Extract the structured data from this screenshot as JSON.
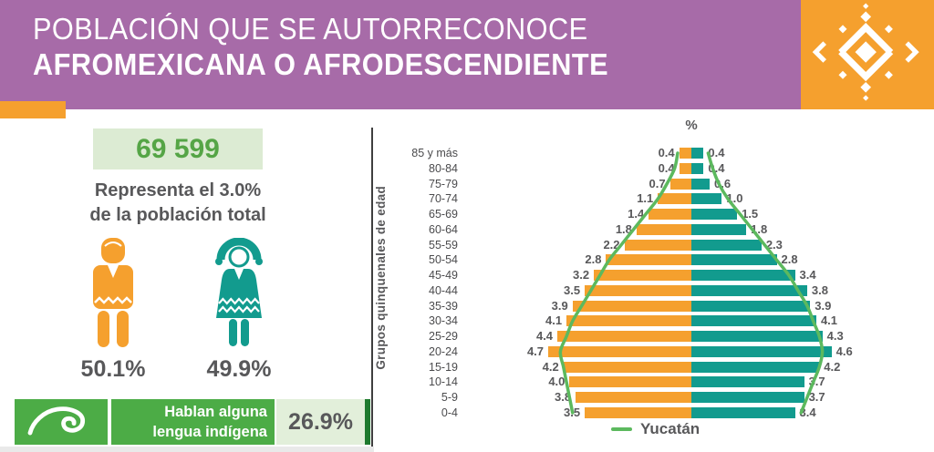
{
  "header": {
    "title_line1": "POBLACIÓN QUE SE AUTORRECONOCE",
    "title_line2": "AFROMEXICANA O AFRODESCENDIENTE"
  },
  "summary": {
    "total": "69 599",
    "description_line1": "Representa el 3.0%",
    "description_line2": "de la población total",
    "male_pct": "50.1%",
    "female_pct": "49.9%"
  },
  "language": {
    "label_line1": "Hablan alguna",
    "label_line2": "lengua indígena",
    "value": "26.9%"
  },
  "colors": {
    "header_purple": "#A76BA8",
    "accent_orange": "#F5A02E",
    "accent_teal": "#129B8E",
    "reference_line_green": "#5CB95E",
    "box_green": "#4CAC46",
    "box_green_dark": "#1E7A2E",
    "light_green_bg": "#DCEBD3",
    "value_green": "#55A546",
    "text_gray": "#58585A"
  },
  "chart_data": {
    "type": "bar",
    "subtype": "population-pyramid",
    "title": "%",
    "ylabel": "Grupos quinquenales de edad",
    "xlim_each_side": [
      0,
      4.7
    ],
    "grid": false,
    "legend_position": "bottom-center",
    "categories": [
      "85 y más",
      "80-84",
      "75-79",
      "70-74",
      "65-69",
      "60-64",
      "55-59",
      "50-54",
      "45-49",
      "40-44",
      "35-39",
      "30-34",
      "25-29",
      "20-24",
      "15-19",
      "10-14",
      "5-9",
      "0-4"
    ],
    "series": [
      {
        "name": "Hombres",
        "side": "left",
        "color": "#F5A02E",
        "values": [
          0.4,
          0.4,
          0.7,
          1.1,
          1.4,
          1.8,
          2.2,
          2.8,
          3.2,
          3.5,
          3.9,
          4.1,
          4.4,
          4.7,
          4.2,
          4.0,
          3.8,
          3.5
        ]
      },
      {
        "name": "Mujeres",
        "side": "right",
        "color": "#129B8E",
        "values": [
          0.4,
          0.4,
          0.6,
          1.0,
          1.5,
          1.8,
          2.3,
          2.8,
          3.4,
          3.8,
          3.9,
          4.1,
          4.3,
          4.6,
          4.2,
          3.7,
          3.7,
          3.4
        ]
      }
    ],
    "reference_line": {
      "name": "Yucatán",
      "color": "#5CB95E",
      "male": [
        0.45,
        0.55,
        0.8,
        1.1,
        1.5,
        1.9,
        2.3,
        2.7,
        3.0,
        3.3,
        3.6,
        3.9,
        4.1,
        4.3,
        4.2,
        4.1,
        4.0,
        3.9
      ],
      "female": [
        0.55,
        0.7,
        0.9,
        1.2,
        1.6,
        2.0,
        2.4,
        2.8,
        3.2,
        3.5,
        3.8,
        4.0,
        4.2,
        4.3,
        4.2,
        4.0,
        3.8,
        3.6
      ]
    }
  }
}
